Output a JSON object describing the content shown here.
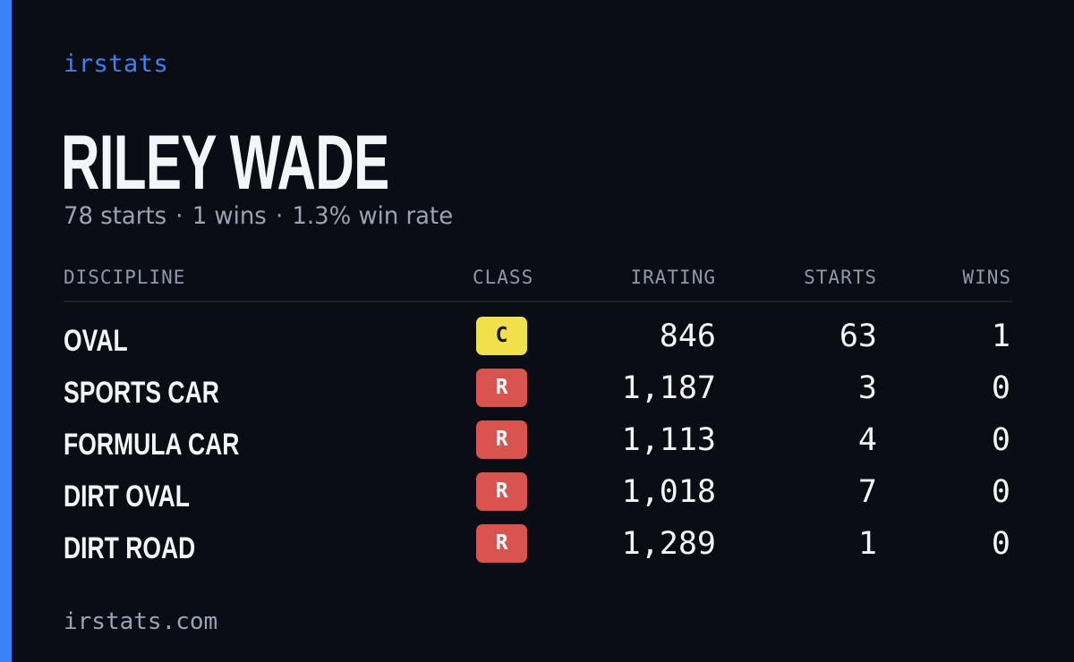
{
  "brand": "irstats",
  "driver_name": "RILEY WADE",
  "summary": {
    "starts": "78 starts",
    "wins": "1 wins",
    "win_rate": "1.3% win rate",
    "separator": "·"
  },
  "table": {
    "headers": {
      "discipline": "DISCIPLINE",
      "class": "CLASS",
      "irating": "IRATING",
      "starts": "STARTS",
      "wins": "WINS"
    },
    "rows": [
      {
        "discipline": "OVAL",
        "class": "C",
        "irating": "846",
        "starts": "63",
        "wins": "1"
      },
      {
        "discipline": "SPORTS CAR",
        "class": "R",
        "irating": "1,187",
        "starts": "3",
        "wins": "0"
      },
      {
        "discipline": "FORMULA CAR",
        "class": "R",
        "irating": "1,113",
        "starts": "4",
        "wins": "0"
      },
      {
        "discipline": "DIRT OVAL",
        "class": "R",
        "irating": "1,018",
        "starts": "7",
        "wins": "0"
      },
      {
        "discipline": "DIRT ROAD",
        "class": "R",
        "irating": "1,289",
        "starts": "1",
        "wins": "0"
      }
    ]
  },
  "class_colors": {
    "C": {
      "bg": "#f1e04a",
      "fg": "#1a1a1a"
    },
    "R": {
      "bg": "#d9534f",
      "fg": "#ffffff"
    }
  },
  "colors": {
    "accent": "#3b82f6",
    "background": "#0b0d14"
  },
  "footer": "irstats.com"
}
